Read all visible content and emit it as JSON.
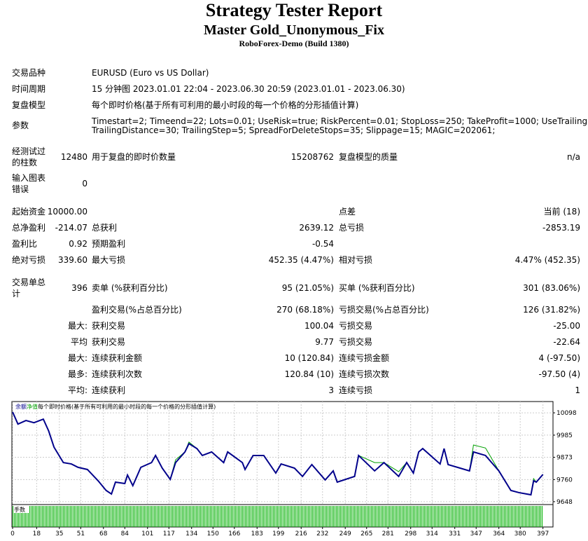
{
  "header": {
    "title": "Strategy Tester Report",
    "subtitle": "Master Gold_Unonymous_Fix",
    "build": "RoboForex-Demo (Build 1380)"
  },
  "general": [
    [
      "交易品种",
      "EURUSD (Euro vs US Dollar)"
    ],
    [
      "时间周期",
      "15 分钟图 2023.01.01 22:04 - 2023.06.30 20:59 (2023.01.01 - 2023.06.30)"
    ],
    [
      "复盘模型",
      "每个即时价格(基于所有可利用的最小时段的每一个价格的分形插值计算)"
    ]
  ],
  "parameters": {
    "label": "参数",
    "lines": [
      "Timestart=2; Timeend=22; Lots=0.01; UseRisk=true; RiskPercent=0.01; StopLoss=250; TakeProfit=1000; UseTrailing=true;",
      "TrailingDistance=30; TrailingStep=5; SpreadForDeleteStops=35; Slippage=15; MAGIC=202061;"
    ]
  },
  "stats": [
    [
      "经测试过的柱数",
      "12480",
      "用于复盘的即时价数量",
      "15208762",
      "复盘模型的质量",
      "n/a"
    ],
    [
      "输入图表错误",
      "0"
    ],
    [
      "起始资金",
      "10000.00",
      "点差",
      "当前 (18)"
    ],
    [
      "总净盈利",
      "-214.07",
      "总获利",
      "2639.12",
      "总亏损",
      "-2853.19"
    ],
    [
      "盈利比",
      "0.92",
      "预期盈利",
      "-0.54"
    ],
    [
      "绝对亏损",
      "339.60",
      "最大亏损",
      "452.35 (4.47%)",
      "相对亏损",
      "4.47% (452.35)"
    ],
    [
      "交易单总计",
      "396",
      "卖单 (%获利百分比)",
      "95 (21.05%)",
      "买单 (%获利百分比)",
      "301 (83.06%)"
    ],
    [
      "盈利交易(%占总百分比)",
      "270 (68.18%)",
      "亏损交易(%占总百分比)",
      "126 (31.82%)"
    ],
    [
      "最大:",
      "获利交易",
      "100.04",
      "亏损交易",
      "-25.00"
    ],
    [
      "平均",
      "获利交易",
      "9.77",
      "亏损交易",
      "-22.64"
    ],
    [
      "最大:",
      "连续获利金额",
      "10 (120.84)",
      "连续亏损金额",
      "4 (-97.50)"
    ],
    [
      "最多:",
      "连续获利次数",
      "120.84 (10)",
      "连续亏损次数",
      "-97.50 (4)"
    ],
    [
      "平均:",
      "连续获利",
      "3",
      "连续亏损",
      "1"
    ]
  ],
  "chart_data": {
    "type": "line",
    "subtitle": "每个即时价格(基于所有可利用的最小时段的每一个价格的分形插值计算)",
    "volume_label": "手数",
    "x": [
      0,
      4,
      10,
      16,
      23,
      27,
      31,
      38,
      44,
      49,
      56,
      64,
      70,
      74,
      77,
      84,
      86,
      90,
      96,
      104,
      107,
      112,
      118,
      122,
      129,
      132,
      138,
      142,
      149,
      158,
      161,
      172,
      174,
      180,
      188,
      197,
      201,
      211,
      217,
      224,
      234,
      240,
      243,
      256,
      259,
      271,
      278,
      289,
      295,
      300,
      304,
      307,
      320,
      323,
      326,
      335,
      342,
      345,
      354,
      364,
      373,
      379,
      388,
      390,
      392,
      397
    ],
    "series": [
      {
        "name": "余额",
        "color": "#00008b",
        "values": [
          10102,
          10041,
          10059,
          10048,
          10066,
          10006,
          9924,
          9846,
          9839,
          9822,
          9811,
          9754,
          9705,
          9687,
          9747,
          9740,
          9783,
          9729,
          9822,
          9846,
          9882,
          9818,
          9761,
          9846,
          9900,
          9942,
          9917,
          9882,
          9900,
          9846,
          9900,
          9846,
          9811,
          9882,
          9882,
          9793,
          9839,
          9818,
          9776,
          9836,
          9758,
          9804,
          9747,
          9776,
          9882,
          9804,
          9846,
          9776,
          9846,
          9793,
          9900,
          9917,
          9839,
          9917,
          9836,
          9818,
          9804,
          9900,
          9882,
          9804,
          9705,
          9694,
          9683,
          9754,
          9747,
          9786
        ]
      },
      {
        "name": "净值",
        "color": "#00a000",
        "values": [
          10102,
          10041,
          10059,
          10048,
          10066,
          10006,
          9924,
          9846,
          9839,
          9822,
          9811,
          9754,
          9705,
          9687,
          9747,
          9740,
          9783,
          9729,
          9822,
          9846,
          9882,
          9818,
          9761,
          9860,
          9900,
          9950,
          9917,
          9882,
          9900,
          9846,
          9900,
          9846,
          9811,
          9882,
          9882,
          9793,
          9839,
          9818,
          9776,
          9836,
          9758,
          9804,
          9747,
          9776,
          9882,
          9846,
          9846,
          9800,
          9846,
          9793,
          9900,
          9917,
          9839,
          9917,
          9836,
          9818,
          9804,
          9935,
          9920,
          9804,
          9705,
          9694,
          9683,
          9765,
          9747,
          9786
        ]
      }
    ],
    "xlim": [
      0,
      404
    ],
    "xticks": [
      0,
      18,
      35,
      51,
      68,
      84,
      101,
      117,
      134,
      150,
      166,
      183,
      199,
      216,
      232,
      249,
      265,
      281,
      298,
      314,
      331,
      347,
      364,
      380,
      397
    ],
    "ylim": [
      9637,
      10148
    ],
    "yticks": [
      9648,
      9760,
      9873,
      9985,
      10098
    ],
    "grid": true
  }
}
